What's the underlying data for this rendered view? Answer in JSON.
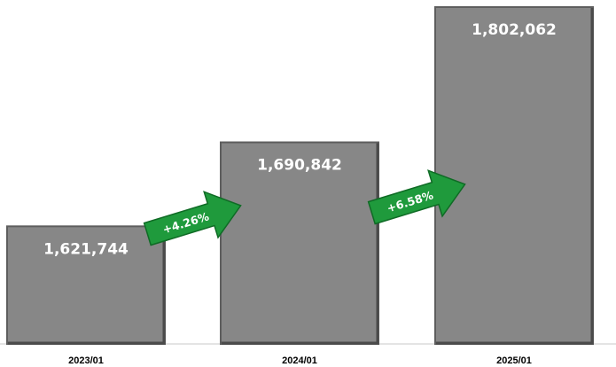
{
  "chart_data": {
    "type": "bar",
    "categories": [
      "2023/01",
      "2024/01",
      "2025/01"
    ],
    "values": [
      1621744,
      1690842,
      1802062
    ],
    "value_labels": [
      "1,621,744",
      "1,690,842",
      "1,802,062"
    ],
    "growth_annotations": [
      {
        "from": "2023/01",
        "to": "2024/01",
        "label": "+4.26%"
      },
      {
        "from": "2024/01",
        "to": "2025/01",
        "label": "+6.58%"
      }
    ],
    "title": "",
    "xlabel": "",
    "ylabel": "",
    "ylim": [
      0,
      1802062
    ],
    "grid": false,
    "legend": "none"
  },
  "colors": {
    "bar": "#878787",
    "bar_edge": "#5e5e5e",
    "arrow": "#1f9a3c",
    "value_text": "#ffffff"
  }
}
